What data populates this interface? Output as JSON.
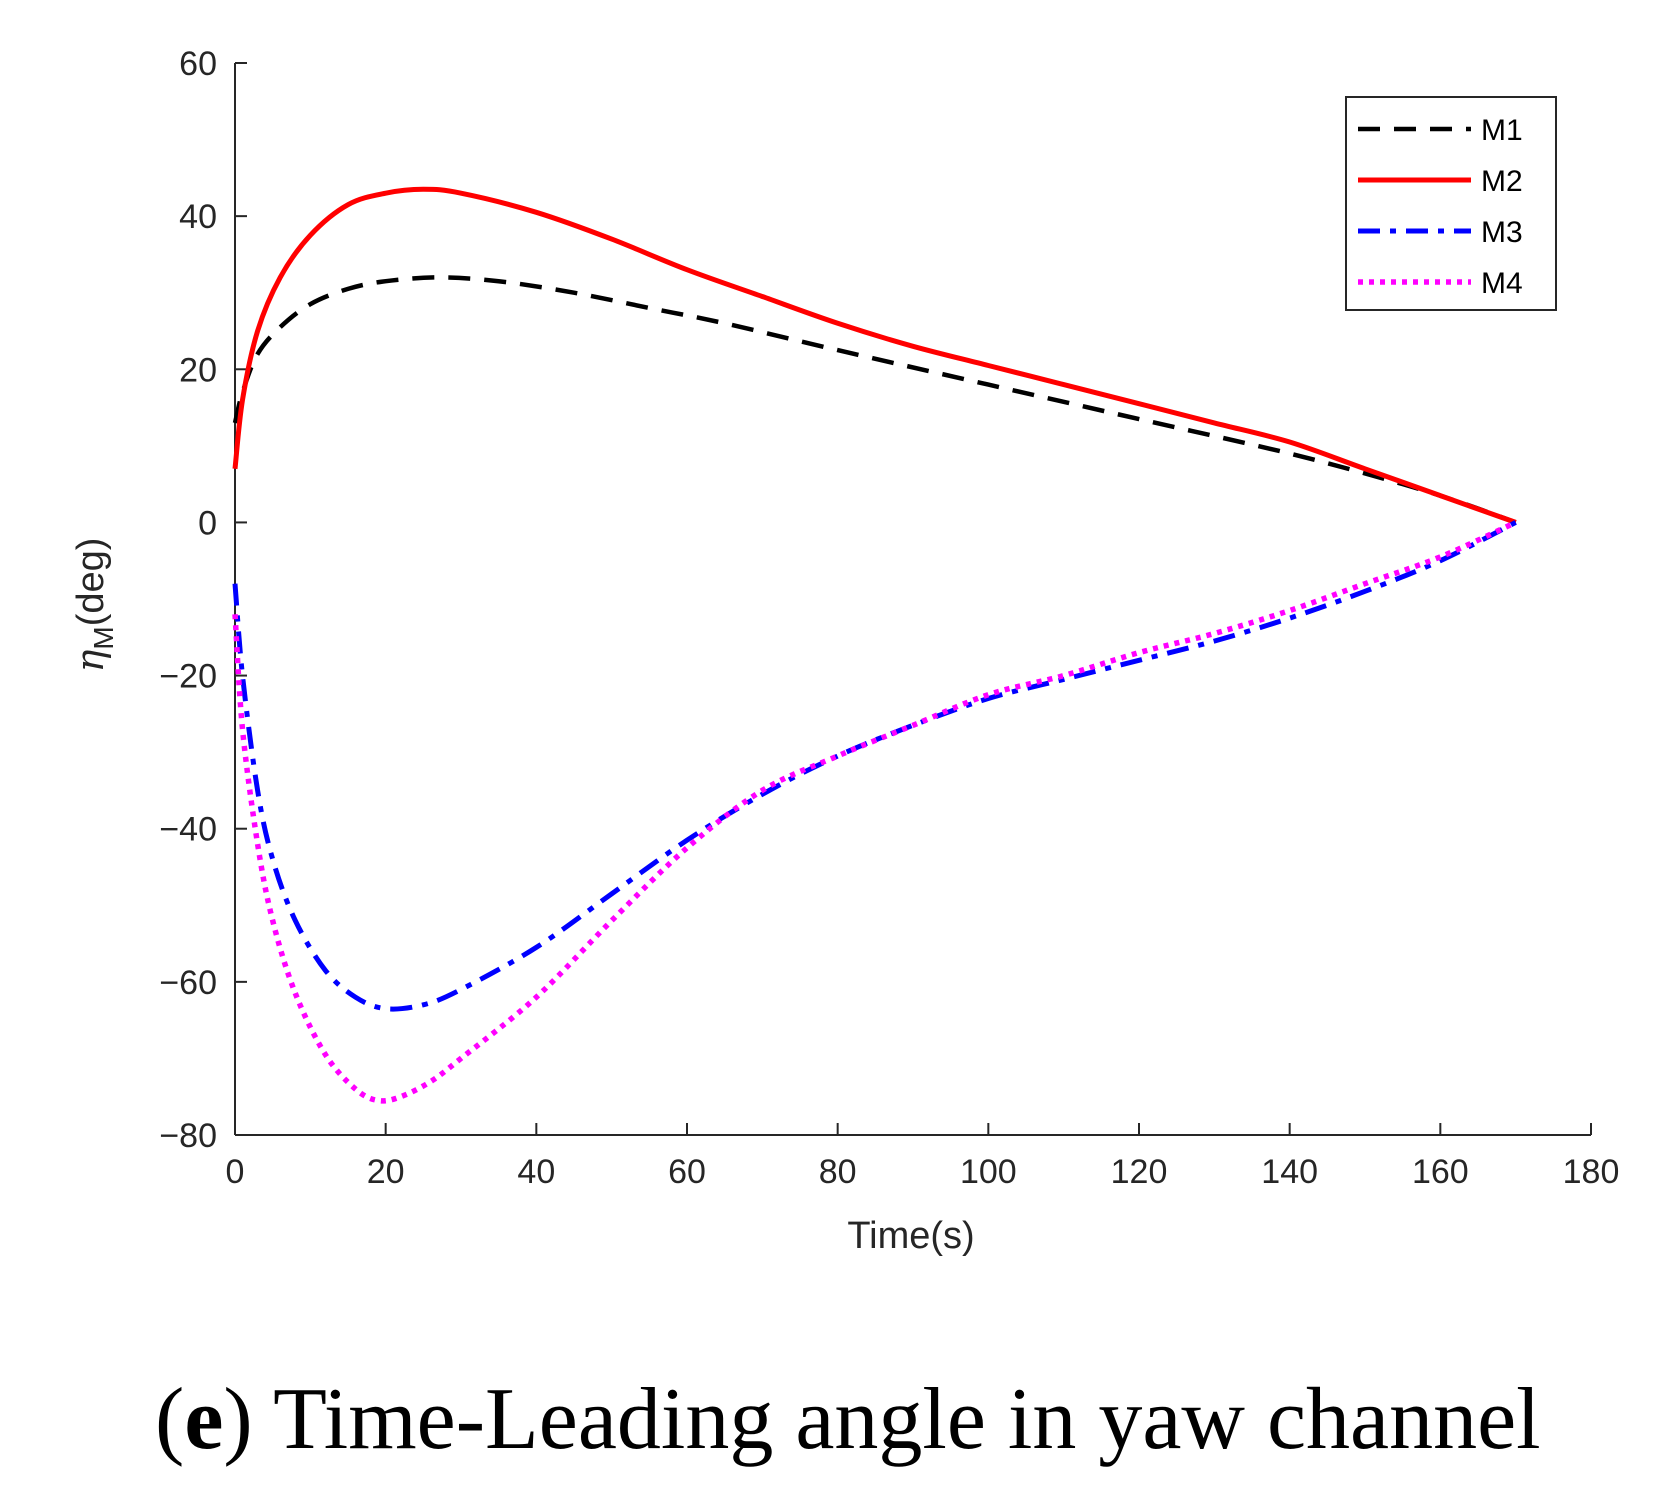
{
  "chart_data": {
    "type": "line",
    "title": "",
    "xlabel": "Time(s)",
    "ylabel_symbol": "η",
    "ylabel_subscript": "M",
    "ylabel_unit": "(deg)",
    "xlim": [
      0,
      180
    ],
    "ylim": [
      -80,
      60
    ],
    "xticks": [
      0,
      20,
      40,
      60,
      80,
      100,
      120,
      140,
      160,
      180
    ],
    "yticks": [
      60,
      40,
      20,
      0,
      -20,
      -40,
      -60,
      -80
    ],
    "xtick_labels": [
      "0",
      "20",
      "40",
      "60",
      "80",
      "100",
      "120",
      "140",
      "160",
      "180"
    ],
    "ytick_labels": [
      "60",
      "40",
      "20",
      "0",
      "−20",
      "−40",
      "−60",
      "−80"
    ],
    "grid": false,
    "legend_position": "top-right",
    "series": [
      {
        "name": "M1",
        "color": "#000000",
        "style": "dashed",
        "x": [
          0,
          1,
          3,
          6,
          10,
          15,
          20,
          27,
          35,
          45,
          55,
          65,
          80,
          100,
          120,
          140,
          155,
          163,
          170
        ],
        "y": [
          13,
          17,
          22,
          25.5,
          28.5,
          30.5,
          31.5,
          32,
          31.5,
          30,
          28,
          26,
          22.5,
          18,
          13.5,
          9,
          5,
          2.5,
          0
        ]
      },
      {
        "name": "M2",
        "color": "#ff0000",
        "style": "solid",
        "x": [
          0,
          1,
          3,
          6,
          10,
          15,
          20,
          25,
          30,
          40,
          50,
          60,
          70,
          80,
          90,
          100,
          110,
          120,
          130,
          140,
          150,
          160,
          170
        ],
        "y": [
          7,
          16,
          25,
          32,
          37.5,
          41.5,
          43,
          43.5,
          43,
          40.5,
          37,
          33,
          29.5,
          26,
          23,
          20.5,
          18,
          15.5,
          13,
          10.5,
          7,
          3.5,
          0
        ]
      },
      {
        "name": "M3",
        "color": "#0000ff",
        "style": "dashdot",
        "x": [
          0,
          1,
          3,
          5,
          8,
          12,
          16,
          20,
          25,
          30,
          40,
          50,
          60,
          70,
          80,
          90,
          100,
          110,
          120,
          130,
          140,
          150,
          160,
          170
        ],
        "y": [
          -8,
          -20,
          -35,
          -44,
          -52,
          -58.5,
          -62,
          -63.5,
          -63,
          -61,
          -55.5,
          -48.5,
          -41.5,
          -35.5,
          -30.5,
          -26.5,
          -23,
          -20.5,
          -18,
          -15.5,
          -12.5,
          -9,
          -5,
          0
        ]
      },
      {
        "name": "M4",
        "color": "#ff00ff",
        "style": "dotted",
        "x": [
          0,
          1,
          3,
          5,
          8,
          12,
          16,
          19,
          22,
          26,
          30,
          40,
          50,
          60,
          70,
          80,
          90,
          100,
          110,
          120,
          130,
          140,
          150,
          160,
          170
        ],
        "y": [
          -12,
          -27,
          -42,
          -52,
          -61.5,
          -69.5,
          -74,
          -75.5,
          -75,
          -73,
          -70,
          -62,
          -52,
          -42.5,
          -35,
          -30.5,
          -26.5,
          -22.5,
          -20,
          -17,
          -14.5,
          -11.5,
          -8,
          -4.5,
          0
        ]
      }
    ]
  },
  "caption": {
    "label": "e",
    "text": " Time-Leading angle in yaw channel"
  }
}
